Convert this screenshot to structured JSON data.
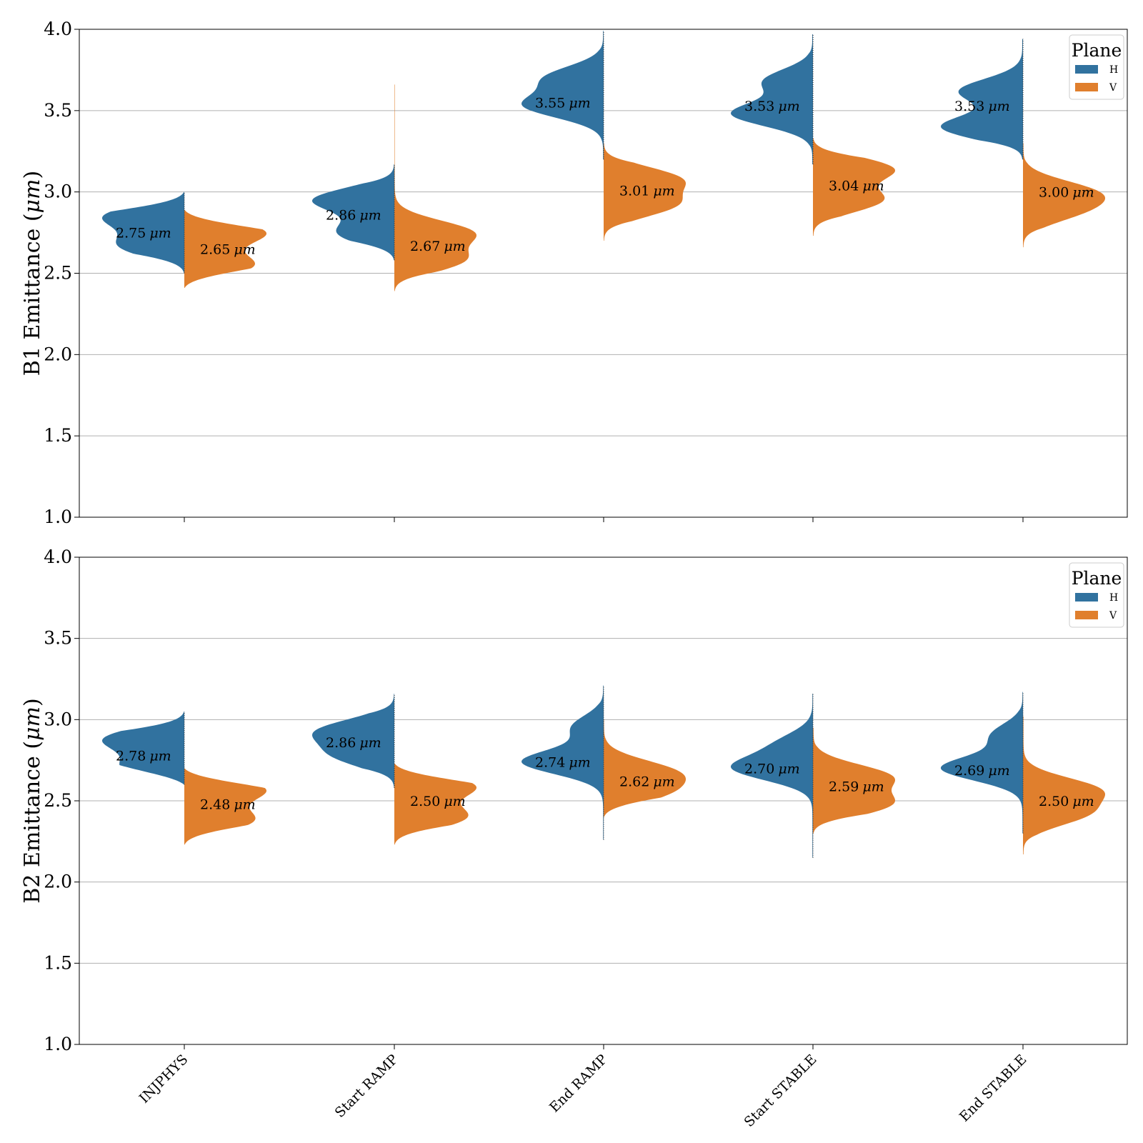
{
  "colors": {
    "H": "#31729f",
    "V": "#e07f2d",
    "grid": "#b0b0b0",
    "axis": "#000000"
  },
  "chart_data": [
    {
      "type": "violin",
      "split": true,
      "title": "",
      "ylabel": "B1 Emittance (μm)",
      "ylabel_prefix": "B1 Emittance (",
      "ylabel_unit": "μm",
      "ylabel_suffix": ")",
      "ylim": [
        1.0,
        4.0
      ],
      "yticks": [
        "1.0",
        "1.5",
        "2.0",
        "2.5",
        "3.0",
        "3.5",
        "4.0"
      ],
      "grid": "y",
      "legend": {
        "title": "Plane",
        "entries": [
          "H",
          "V"
        ],
        "position": "top-right"
      },
      "categories": [
        "INJPHYS",
        "Start RAMP",
        "End RAMP",
        "Start STABLE",
        "End STABLE"
      ],
      "series": [
        {
          "name": "H",
          "medians": [
            2.75,
            2.86,
            3.55,
            3.53,
            3.53
          ],
          "median_labels": [
            "2.75",
            "2.86",
            "3.55",
            "3.53",
            "3.53"
          ],
          "ranges": [
            [
              2.5,
              3.0
            ],
            [
              2.58,
              3.17
            ],
            [
              3.2,
              3.99
            ],
            [
              3.17,
              3.97
            ],
            [
              3.2,
              3.94
            ]
          ],
          "modes": [
            [
              [
                2.85,
                1.0
              ],
              [
                2.67,
                0.8
              ]
            ],
            [
              [
                2.95,
                0.8
              ],
              [
                2.75,
                0.55
              ]
            ],
            [
              [
                3.53,
                0.55
              ],
              [
                3.7,
                0.4
              ]
            ],
            [
              [
                3.48,
                0.5
              ],
              [
                3.68,
                0.3
              ]
            ],
            [
              [
                3.4,
                0.45
              ],
              [
                3.62,
                0.35
              ]
            ]
          ]
        },
        {
          "name": "V",
          "medians": [
            2.65,
            2.67,
            3.01,
            3.04,
            3.0
          ],
          "median_labels": [
            "2.65",
            "2.67",
            "3.01",
            "3.04",
            "3.00"
          ],
          "ranges": [
            [
              2.41,
              2.89
            ],
            [
              2.39,
              3.66
            ],
            [
              2.7,
              3.3
            ],
            [
              2.73,
              3.33
            ],
            [
              2.66,
              3.3
            ]
          ],
          "modes": [
            [
              [
                2.75,
                1.0
              ],
              [
                2.55,
                0.85
              ]
            ],
            [
              [
                2.75,
                0.8
              ],
              [
                2.58,
                0.7
              ]
            ],
            [
              [
                3.08,
                0.75
              ],
              [
                2.92,
                0.7
              ]
            ],
            [
              [
                3.14,
                0.7
              ],
              [
                2.95,
                0.6
              ]
            ],
            [
              [
                3.0,
                0.6
              ],
              [
                2.88,
                0.45
              ]
            ]
          ]
        }
      ]
    },
    {
      "type": "violin",
      "split": true,
      "title": "",
      "ylabel": "B2 Emittance (μm)",
      "ylabel_prefix": "B2 Emittance (",
      "ylabel_unit": "μm",
      "ylabel_suffix": ")",
      "ylim": [
        1.0,
        4.0
      ],
      "yticks": [
        "1.0",
        "1.5",
        "2.0",
        "2.5",
        "3.0",
        "3.5",
        "4.0"
      ],
      "grid": "y",
      "legend": {
        "title": "Plane",
        "entries": [
          "H",
          "V"
        ],
        "position": "top-right"
      },
      "categories": [
        "INJPHYS",
        "Start RAMP",
        "End RAMP",
        "Start STABLE",
        "End STABLE"
      ],
      "series": [
        {
          "name": "H",
          "medians": [
            2.78,
            2.86,
            2.74,
            2.7,
            2.69
          ],
          "median_labels": [
            "2.78",
            "2.86",
            "2.74",
            "2.70",
            "2.69"
          ],
          "ranges": [
            [
              2.6,
              3.05
            ],
            [
              2.58,
              3.16
            ],
            [
              2.26,
              3.21
            ],
            [
              2.15,
              3.16
            ],
            [
              2.3,
              3.17
            ]
          ],
          "modes": [
            [
              [
                2.88,
                1.0
              ],
              [
                2.7,
                0.75
              ]
            ],
            [
              [
                2.93,
                0.85
              ],
              [
                2.78,
                0.65
              ]
            ],
            [
              [
                2.74,
                0.65
              ],
              [
                2.95,
                0.25
              ]
            ],
            [
              [
                2.7,
                0.6
              ],
              [
                2.85,
                0.25
              ]
            ],
            [
              [
                2.7,
                0.65
              ],
              [
                2.9,
                0.25
              ]
            ]
          ]
        },
        {
          "name": "V",
          "medians": [
            2.48,
            2.5,
            2.62,
            2.59,
            2.5
          ],
          "median_labels": [
            "2.48",
            "2.50",
            "2.62",
            "2.59",
            "2.50"
          ],
          "ranges": [
            [
              2.23,
              2.7
            ],
            [
              2.23,
              2.73
            ],
            [
              2.4,
              3.0
            ],
            [
              2.3,
              2.95
            ],
            [
              2.17,
              3.02
            ]
          ],
          "modes": [
            [
              [
                2.57,
                1.0
              ],
              [
                2.38,
                0.85
              ]
            ],
            [
              [
                2.59,
                0.9
              ],
              [
                2.4,
                0.8
              ]
            ],
            [
              [
                2.68,
                0.7
              ],
              [
                2.55,
                0.6
              ]
            ],
            [
              [
                2.65,
                0.55
              ],
              [
                2.48,
                0.55
              ]
            ],
            [
              [
                2.57,
                0.6
              ],
              [
                2.42,
                0.5
              ]
            ]
          ]
        }
      ]
    }
  ]
}
